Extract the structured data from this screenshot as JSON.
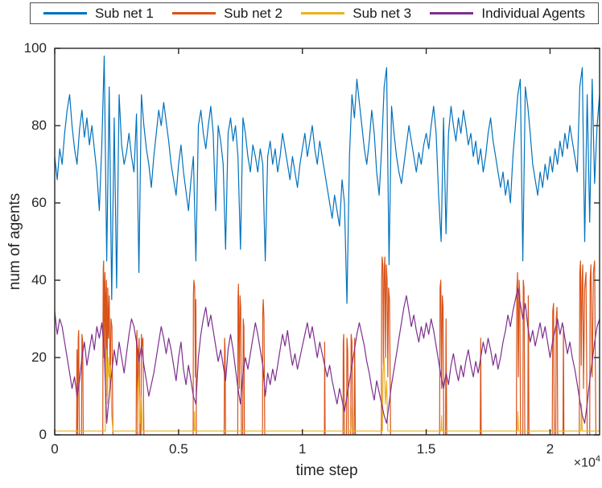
{
  "legend": {
    "items": [
      {
        "label": "Sub net 1",
        "color": "#0072BD"
      },
      {
        "label": "Sub net 2",
        "color": "#D95319"
      },
      {
        "label": "Sub net 3",
        "color": "#EDB120"
      },
      {
        "label": "Individual Agents",
        "color": "#7E2F8E"
      }
    ]
  },
  "axes": {
    "ylabel": "num of agents",
    "xlabel": "time step",
    "x_exponent_base": "×10",
    "x_exponent_power": "4",
    "axis_color": "#262626",
    "yticks": [
      {
        "v": 0,
        "label": "0"
      },
      {
        "v": 20,
        "label": "20"
      },
      {
        "v": 40,
        "label": "40"
      },
      {
        "v": 60,
        "label": "60"
      },
      {
        "v": 80,
        "label": "80"
      },
      {
        "v": 100,
        "label": "100"
      }
    ],
    "xticks": [
      {
        "v": 0,
        "label": "0"
      },
      {
        "v": 5000,
        "label": "0.5"
      },
      {
        "v": 10000,
        "label": "1"
      },
      {
        "v": 15000,
        "label": "1.5"
      },
      {
        "v": 20000,
        "label": "2"
      }
    ]
  },
  "chart_data": {
    "type": "line",
    "title": "",
    "xlabel": "time step",
    "ylabel": "num of agents",
    "xlim": [
      0,
      22000
    ],
    "ylim": [
      0,
      100
    ],
    "x_tick_multiplier": "1e4",
    "grid": false,
    "legend_position": "top",
    "series": [
      {
        "name": "Sub net 1",
        "color": "#0072BD",
        "x_step": 100,
        "values": [
          72,
          66,
          74,
          70,
          78,
          84,
          88,
          80,
          74,
          70,
          79,
          84,
          77,
          82,
          75,
          80,
          74,
          68,
          58,
          75,
          98,
          45,
          90,
          35,
          82,
          38,
          88,
          75,
          70,
          73,
          78,
          72,
          68,
          83,
          42,
          88,
          80,
          74,
          70,
          64,
          72,
          78,
          84,
          80,
          86,
          81,
          76,
          70,
          66,
          62,
          70,
          75,
          68,
          63,
          58,
          66,
          72,
          45,
          80,
          84,
          78,
          74,
          80,
          85,
          78,
          58,
          80,
          76,
          70,
          48,
          78,
          82,
          76,
          80,
          72,
          48,
          82,
          78,
          72,
          68,
          75,
          72,
          68,
          74,
          70,
          45,
          72,
          76,
          70,
          74,
          68,
          72,
          78,
          74,
          70,
          66,
          72,
          68,
          64,
          70,
          74,
          78,
          72,
          76,
          80,
          74,
          70,
          76,
          72,
          68,
          64,
          60,
          56,
          62,
          58,
          54,
          66,
          60,
          34,
          72,
          88,
          82,
          92,
          86,
          80,
          74,
          70,
          76,
          84,
          78,
          68,
          62,
          74,
          90,
          95,
          44,
          85,
          78,
          72,
          68,
          65,
          70,
          75,
          80,
          76,
          72,
          68,
          73,
          70,
          75,
          78,
          74,
          80,
          85,
          78,
          62,
          50,
          82,
          52,
          78,
          85,
          80,
          76,
          82,
          78,
          84,
          80,
          75,
          78,
          72,
          76,
          70,
          74,
          68,
          72,
          78,
          82,
          76,
          72,
          68,
          64,
          68,
          62,
          66,
          60,
          72,
          80,
          88,
          92,
          45,
          90,
          85,
          78,
          70,
          66,
          62,
          68,
          64,
          70,
          66,
          72,
          68,
          74,
          70,
          76,
          72,
          78,
          74,
          80,
          76,
          72,
          68,
          90,
          95,
          50,
          88,
          55,
          92,
          65,
          80,
          88
        ]
      },
      {
        "name": "Sub net 2",
        "color": "#D95319",
        "points": [
          [
            0,
            0
          ],
          [
            880,
            0
          ],
          [
            900,
            22
          ],
          [
            920,
            0
          ],
          [
            950,
            25
          ],
          [
            970,
            27
          ],
          [
            990,
            0
          ],
          [
            1080,
            0
          ],
          [
            1100,
            26
          ],
          [
            1130,
            24
          ],
          [
            1150,
            0
          ],
          [
            1940,
            0
          ],
          [
            1950,
            30
          ],
          [
            1960,
            43
          ],
          [
            1975,
            45
          ],
          [
            1990,
            20
          ],
          [
            2010,
            38
          ],
          [
            2030,
            42
          ],
          [
            2050,
            15
          ],
          [
            2070,
            35
          ],
          [
            2090,
            40
          ],
          [
            2110,
            10
          ],
          [
            2140,
            38
          ],
          [
            2170,
            25
          ],
          [
            2200,
            36
          ],
          [
            2240,
            12
          ],
          [
            2270,
            30
          ],
          [
            2310,
            28
          ],
          [
            2350,
            0
          ],
          [
            3290,
            0
          ],
          [
            3300,
            24
          ],
          [
            3320,
            27
          ],
          [
            3350,
            0
          ],
          [
            3380,
            22
          ],
          [
            3410,
            25
          ],
          [
            3440,
            0
          ],
          [
            3480,
            0
          ],
          [
            3500,
            26
          ],
          [
            3530,
            23
          ],
          [
            3560,
            25
          ],
          [
            3600,
            0
          ],
          [
            5590,
            0
          ],
          [
            5600,
            36
          ],
          [
            5620,
            40
          ],
          [
            5650,
            38
          ],
          [
            5680,
            15
          ],
          [
            5700,
            35
          ],
          [
            5720,
            0
          ],
          [
            6840,
            0
          ],
          [
            6860,
            25
          ],
          [
            6880,
            22
          ],
          [
            6900,
            0
          ],
          [
            7390,
            0
          ],
          [
            7400,
            35
          ],
          [
            7420,
            39
          ],
          [
            7450,
            12
          ],
          [
            7480,
            36
          ],
          [
            7510,
            33
          ],
          [
            7540,
            0
          ],
          [
            7590,
            0
          ],
          [
            7610,
            30
          ],
          [
            7640,
            28
          ],
          [
            7660,
            0
          ],
          [
            8390,
            0
          ],
          [
            8400,
            32
          ],
          [
            8420,
            35
          ],
          [
            8450,
            30
          ],
          [
            8480,
            0
          ],
          [
            10890,
            0
          ],
          [
            10900,
            24
          ],
          [
            10920,
            0
          ],
          [
            11640,
            0
          ],
          [
            11650,
            24
          ],
          [
            11670,
            26
          ],
          [
            11700,
            0
          ],
          [
            11780,
            0
          ],
          [
            11800,
            25
          ],
          [
            11830,
            22
          ],
          [
            11860,
            0
          ],
          [
            11950,
            0
          ],
          [
            11970,
            26
          ],
          [
            12000,
            24
          ],
          [
            12030,
            0
          ],
          [
            12090,
            0
          ],
          [
            12110,
            25
          ],
          [
            12140,
            0
          ],
          [
            13190,
            0
          ],
          [
            13200,
            40
          ],
          [
            13220,
            46
          ],
          [
            13250,
            44
          ],
          [
            13270,
            18
          ],
          [
            13300,
            42
          ],
          [
            13330,
            46
          ],
          [
            13360,
            20
          ],
          [
            13390,
            44
          ],
          [
            13420,
            40
          ],
          [
            13450,
            15
          ],
          [
            13480,
            38
          ],
          [
            13520,
            35
          ],
          [
            13560,
            0
          ],
          [
            15540,
            0
          ],
          [
            15560,
            38
          ],
          [
            15590,
            40
          ],
          [
            15620,
            12
          ],
          [
            15650,
            36
          ],
          [
            15680,
            33
          ],
          [
            15710,
            0
          ],
          [
            15780,
            0
          ],
          [
            15800,
            30
          ],
          [
            15830,
            0
          ],
          [
            17180,
            0
          ],
          [
            17200,
            25
          ],
          [
            17220,
            0
          ],
          [
            18640,
            0
          ],
          [
            18660,
            38
          ],
          [
            18690,
            42
          ],
          [
            18720,
            15
          ],
          [
            18750,
            40
          ],
          [
            18780,
            36
          ],
          [
            18810,
            0
          ],
          [
            18900,
            0
          ],
          [
            18920,
            40
          ],
          [
            18950,
            38
          ],
          [
            18980,
            0
          ],
          [
            19100,
            0
          ],
          [
            19120,
            36
          ],
          [
            19150,
            0
          ],
          [
            20090,
            0
          ],
          [
            20110,
            32
          ],
          [
            20140,
            34
          ],
          [
            20170,
            0
          ],
          [
            20230,
            0
          ],
          [
            20250,
            30
          ],
          [
            20280,
            33
          ],
          [
            20310,
            0
          ],
          [
            20520,
            0
          ],
          [
            20540,
            28
          ],
          [
            20560,
            0
          ],
          [
            21180,
            0
          ],
          [
            21200,
            42
          ],
          [
            21230,
            45
          ],
          [
            21260,
            18
          ],
          [
            21290,
            40
          ],
          [
            21320,
            44
          ],
          [
            21350,
            12
          ],
          [
            21400,
            38
          ],
          [
            21450,
            42
          ],
          [
            21500,
            0
          ],
          [
            21600,
            0
          ],
          [
            21620,
            40
          ],
          [
            21650,
            44
          ],
          [
            21700,
            15
          ],
          [
            21750,
            42
          ],
          [
            21800,
            45
          ],
          [
            21850,
            0
          ],
          [
            22000,
            0
          ]
        ]
      },
      {
        "name": "Sub net 3",
        "color": "#EDB120",
        "points": [
          [
            0,
            1
          ],
          [
            2040,
            1
          ],
          [
            2060,
            18
          ],
          [
            2090,
            22
          ],
          [
            2130,
            8
          ],
          [
            2160,
            20
          ],
          [
            2200,
            15
          ],
          [
            2250,
            18
          ],
          [
            2300,
            5
          ],
          [
            2350,
            1
          ],
          [
            3340,
            1
          ],
          [
            3360,
            12
          ],
          [
            3400,
            15
          ],
          [
            3450,
            3
          ],
          [
            3500,
            10
          ],
          [
            3550,
            1
          ],
          [
            5620,
            1
          ],
          [
            5640,
            6
          ],
          [
            5660,
            1
          ],
          [
            11960,
            1
          ],
          [
            11980,
            7
          ],
          [
            12010,
            1
          ],
          [
            13230,
            1
          ],
          [
            13260,
            16
          ],
          [
            13300,
            20
          ],
          [
            13350,
            8
          ],
          [
            13400,
            14
          ],
          [
            13450,
            1
          ],
          [
            15600,
            1
          ],
          [
            15620,
            5
          ],
          [
            15640,
            1
          ],
          [
            18680,
            1
          ],
          [
            18700,
            6
          ],
          [
            18730,
            1
          ],
          [
            21250,
            1
          ],
          [
            21270,
            8
          ],
          [
            21300,
            1
          ],
          [
            22000,
            1
          ]
        ]
      },
      {
        "name": "Individual Agents",
        "color": "#7E2F8E",
        "x_step": 100,
        "values": [
          32,
          26,
          30,
          28,
          24,
          20,
          16,
          12,
          15,
          10,
          14,
          20,
          24,
          18,
          22,
          26,
          22,
          28,
          25,
          29,
          22,
          3,
          10,
          16,
          22,
          18,
          24,
          20,
          16,
          21,
          26,
          30,
          28,
          24,
          19,
          23,
          18,
          14,
          10,
          13,
          16,
          20,
          24,
          28,
          25,
          21,
          25,
          22,
          18,
          14,
          20,
          24,
          17,
          13,
          18,
          14,
          10,
          8,
          20,
          26,
          30,
          33,
          28,
          31,
          27,
          23,
          19,
          22,
          18,
          14,
          22,
          26,
          22,
          17,
          12,
          8,
          16,
          20,
          17,
          21,
          25,
          29,
          26,
          22,
          18,
          10,
          16,
          13,
          17,
          14,
          18,
          22,
          26,
          23,
          27,
          22,
          18,
          21,
          17,
          20,
          23,
          26,
          29,
          25,
          28,
          24,
          20,
          24,
          21,
          18,
          15,
          18,
          14,
          11,
          8,
          12,
          9,
          6,
          10,
          14,
          18,
          22,
          26,
          29,
          26,
          23,
          19,
          16,
          12,
          9,
          14,
          11,
          8,
          5,
          3,
          8,
          13,
          17,
          21,
          25,
          29,
          33,
          36,
          32,
          28,
          31,
          27,
          24,
          28,
          25,
          29,
          26,
          30,
          27,
          23,
          19,
          15,
          12,
          16,
          13,
          18,
          21,
          17,
          14,
          18,
          15,
          19,
          22,
          18,
          15,
          19,
          16,
          20,
          24,
          21,
          25,
          22,
          18,
          21,
          17,
          20,
          24,
          27,
          31,
          28,
          32,
          35,
          38,
          34,
          30,
          34,
          28,
          24,
          27,
          23,
          26,
          29,
          25,
          28,
          24,
          20,
          24,
          27,
          30,
          26,
          29,
          25,
          21,
          24,
          20,
          17,
          13,
          9,
          5,
          3,
          8,
          14,
          19,
          24,
          28,
          30
        ]
      }
    ]
  }
}
